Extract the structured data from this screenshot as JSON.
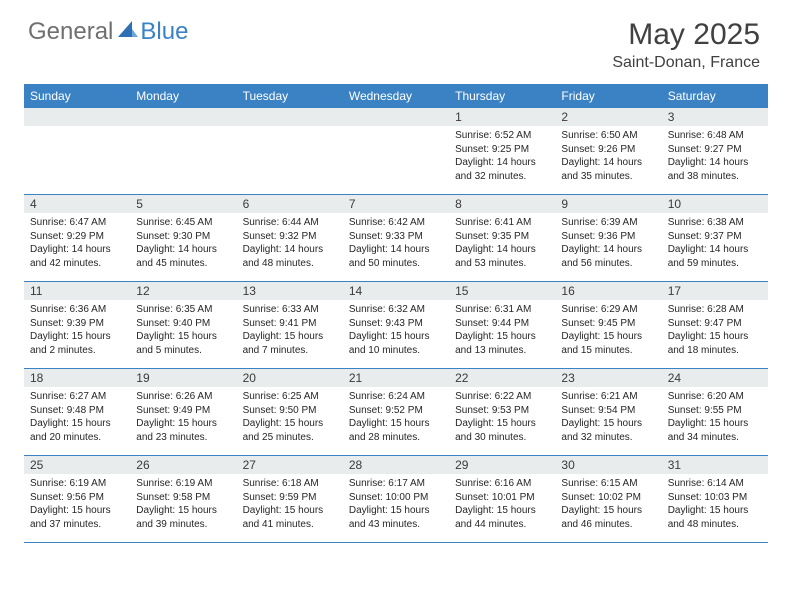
{
  "brand": {
    "part1": "General",
    "part2": "Blue"
  },
  "title": "May 2025",
  "location": "Saint-Donan, France",
  "header_bg": "#3b82c4",
  "dayheaders": [
    "Sunday",
    "Monday",
    "Tuesday",
    "Wednesday",
    "Thursday",
    "Friday",
    "Saturday"
  ],
  "weeks": [
    [
      {
        "n": "",
        "sr": "",
        "ss": "",
        "dl": ""
      },
      {
        "n": "",
        "sr": "",
        "ss": "",
        "dl": ""
      },
      {
        "n": "",
        "sr": "",
        "ss": "",
        "dl": ""
      },
      {
        "n": "",
        "sr": "",
        "ss": "",
        "dl": ""
      },
      {
        "n": "1",
        "sr": "Sunrise: 6:52 AM",
        "ss": "Sunset: 9:25 PM",
        "dl": "Daylight: 14 hours and 32 minutes."
      },
      {
        "n": "2",
        "sr": "Sunrise: 6:50 AM",
        "ss": "Sunset: 9:26 PM",
        "dl": "Daylight: 14 hours and 35 minutes."
      },
      {
        "n": "3",
        "sr": "Sunrise: 6:48 AM",
        "ss": "Sunset: 9:27 PM",
        "dl": "Daylight: 14 hours and 38 minutes."
      }
    ],
    [
      {
        "n": "4",
        "sr": "Sunrise: 6:47 AM",
        "ss": "Sunset: 9:29 PM",
        "dl": "Daylight: 14 hours and 42 minutes."
      },
      {
        "n": "5",
        "sr": "Sunrise: 6:45 AM",
        "ss": "Sunset: 9:30 PM",
        "dl": "Daylight: 14 hours and 45 minutes."
      },
      {
        "n": "6",
        "sr": "Sunrise: 6:44 AM",
        "ss": "Sunset: 9:32 PM",
        "dl": "Daylight: 14 hours and 48 minutes."
      },
      {
        "n": "7",
        "sr": "Sunrise: 6:42 AM",
        "ss": "Sunset: 9:33 PM",
        "dl": "Daylight: 14 hours and 50 minutes."
      },
      {
        "n": "8",
        "sr": "Sunrise: 6:41 AM",
        "ss": "Sunset: 9:35 PM",
        "dl": "Daylight: 14 hours and 53 minutes."
      },
      {
        "n": "9",
        "sr": "Sunrise: 6:39 AM",
        "ss": "Sunset: 9:36 PM",
        "dl": "Daylight: 14 hours and 56 minutes."
      },
      {
        "n": "10",
        "sr": "Sunrise: 6:38 AM",
        "ss": "Sunset: 9:37 PM",
        "dl": "Daylight: 14 hours and 59 minutes."
      }
    ],
    [
      {
        "n": "11",
        "sr": "Sunrise: 6:36 AM",
        "ss": "Sunset: 9:39 PM",
        "dl": "Daylight: 15 hours and 2 minutes."
      },
      {
        "n": "12",
        "sr": "Sunrise: 6:35 AM",
        "ss": "Sunset: 9:40 PM",
        "dl": "Daylight: 15 hours and 5 minutes."
      },
      {
        "n": "13",
        "sr": "Sunrise: 6:33 AM",
        "ss": "Sunset: 9:41 PM",
        "dl": "Daylight: 15 hours and 7 minutes."
      },
      {
        "n": "14",
        "sr": "Sunrise: 6:32 AM",
        "ss": "Sunset: 9:43 PM",
        "dl": "Daylight: 15 hours and 10 minutes."
      },
      {
        "n": "15",
        "sr": "Sunrise: 6:31 AM",
        "ss": "Sunset: 9:44 PM",
        "dl": "Daylight: 15 hours and 13 minutes."
      },
      {
        "n": "16",
        "sr": "Sunrise: 6:29 AM",
        "ss": "Sunset: 9:45 PM",
        "dl": "Daylight: 15 hours and 15 minutes."
      },
      {
        "n": "17",
        "sr": "Sunrise: 6:28 AM",
        "ss": "Sunset: 9:47 PM",
        "dl": "Daylight: 15 hours and 18 minutes."
      }
    ],
    [
      {
        "n": "18",
        "sr": "Sunrise: 6:27 AM",
        "ss": "Sunset: 9:48 PM",
        "dl": "Daylight: 15 hours and 20 minutes."
      },
      {
        "n": "19",
        "sr": "Sunrise: 6:26 AM",
        "ss": "Sunset: 9:49 PM",
        "dl": "Daylight: 15 hours and 23 minutes."
      },
      {
        "n": "20",
        "sr": "Sunrise: 6:25 AM",
        "ss": "Sunset: 9:50 PM",
        "dl": "Daylight: 15 hours and 25 minutes."
      },
      {
        "n": "21",
        "sr": "Sunrise: 6:24 AM",
        "ss": "Sunset: 9:52 PM",
        "dl": "Daylight: 15 hours and 28 minutes."
      },
      {
        "n": "22",
        "sr": "Sunrise: 6:22 AM",
        "ss": "Sunset: 9:53 PM",
        "dl": "Daylight: 15 hours and 30 minutes."
      },
      {
        "n": "23",
        "sr": "Sunrise: 6:21 AM",
        "ss": "Sunset: 9:54 PM",
        "dl": "Daylight: 15 hours and 32 minutes."
      },
      {
        "n": "24",
        "sr": "Sunrise: 6:20 AM",
        "ss": "Sunset: 9:55 PM",
        "dl": "Daylight: 15 hours and 34 minutes."
      }
    ],
    [
      {
        "n": "25",
        "sr": "Sunrise: 6:19 AM",
        "ss": "Sunset: 9:56 PM",
        "dl": "Daylight: 15 hours and 37 minutes."
      },
      {
        "n": "26",
        "sr": "Sunrise: 6:19 AM",
        "ss": "Sunset: 9:58 PM",
        "dl": "Daylight: 15 hours and 39 minutes."
      },
      {
        "n": "27",
        "sr": "Sunrise: 6:18 AM",
        "ss": "Sunset: 9:59 PM",
        "dl": "Daylight: 15 hours and 41 minutes."
      },
      {
        "n": "28",
        "sr": "Sunrise: 6:17 AM",
        "ss": "Sunset: 10:00 PM",
        "dl": "Daylight: 15 hours and 43 minutes."
      },
      {
        "n": "29",
        "sr": "Sunrise: 6:16 AM",
        "ss": "Sunset: 10:01 PM",
        "dl": "Daylight: 15 hours and 44 minutes."
      },
      {
        "n": "30",
        "sr": "Sunrise: 6:15 AM",
        "ss": "Sunset: 10:02 PM",
        "dl": "Daylight: 15 hours and 46 minutes."
      },
      {
        "n": "31",
        "sr": "Sunrise: 6:14 AM",
        "ss": "Sunset: 10:03 PM",
        "dl": "Daylight: 15 hours and 48 minutes."
      }
    ]
  ]
}
